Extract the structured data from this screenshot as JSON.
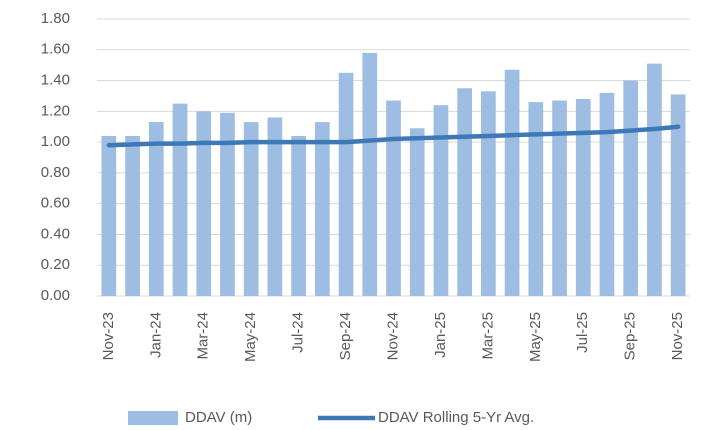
{
  "chart_data": {
    "type": "bar",
    "categories": [
      "Nov-23",
      null,
      "Jan-24",
      null,
      "Mar-24",
      null,
      "May-24",
      null,
      "Jul-24",
      null,
      "Sep-24",
      null,
      "Nov-24",
      null,
      "Jan-25",
      null,
      "Mar-25",
      null,
      "May-25",
      null,
      "Jul-25",
      null,
      "Sep-25",
      null,
      "Nov-25"
    ],
    "series": [
      {
        "name": "DDAV (m)",
        "type": "bar",
        "color": "#9dbde3",
        "values": [
          1.04,
          1.04,
          1.13,
          1.25,
          1.2,
          1.19,
          1.13,
          1.16,
          1.04,
          1.13,
          1.45,
          1.58,
          1.27,
          1.09,
          1.24,
          1.35,
          1.33,
          1.47,
          1.26,
          1.27,
          1.28,
          1.32,
          1.4,
          1.51,
          1.31
        ]
      },
      {
        "name": "DDAV Rolling 5-Yr Avg.",
        "type": "line",
        "color": "#3d79b6",
        "values": [
          0.98,
          0.985,
          0.99,
          0.99,
          0.995,
          0.995,
          1.0,
          1.0,
          1.0,
          1.0,
          1.0,
          1.01,
          1.02,
          1.025,
          1.03,
          1.035,
          1.04,
          1.045,
          1.05,
          1.055,
          1.06,
          1.065,
          1.075,
          1.085,
          1.1
        ]
      }
    ],
    "ylim": [
      0,
      1.8
    ],
    "yticks": [
      {
        "value": 0,
        "label": "0.00"
      },
      {
        "value": 0.2,
        "label": "0.20"
      },
      {
        "value": 0.4,
        "label": "0.40"
      },
      {
        "value": 0.6,
        "label": "0.60"
      },
      {
        "value": 0.8,
        "label": "0.80"
      },
      {
        "value": 1.0,
        "label": "1.00"
      },
      {
        "value": 1.2,
        "label": "1.20"
      },
      {
        "value": 1.4,
        "label": "1.40"
      },
      {
        "value": 1.6,
        "label": "1.60"
      },
      {
        "value": 1.8,
        "label": "1.80"
      }
    ],
    "grid": true,
    "legend": "bottom"
  }
}
